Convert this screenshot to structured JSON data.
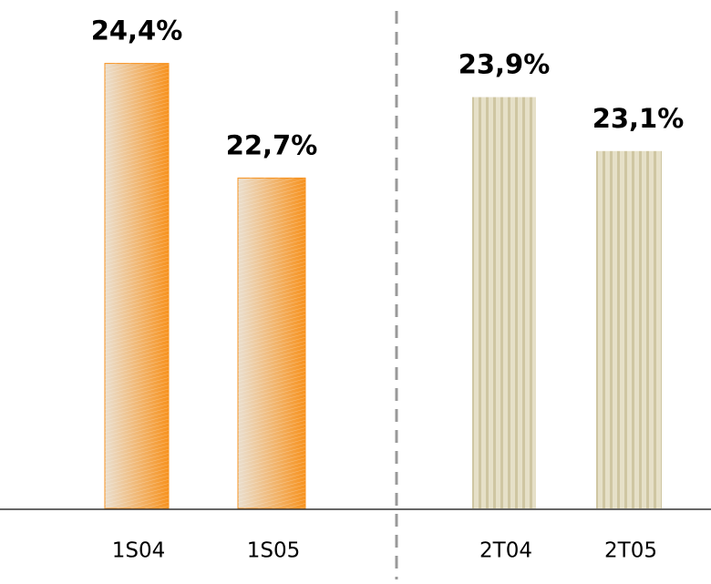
{
  "chart_data": {
    "type": "bar",
    "categories": [
      "1S04",
      "1S05",
      "2T04",
      "2T05"
    ],
    "values": [
      24.4,
      22.7,
      23.9,
      23.1
    ],
    "value_labels": [
      "24,4%",
      "22,7%",
      "23,9%",
      "23,1%"
    ],
    "colors": [
      "#f7921e",
      "#f7921e",
      "#d3cbaa",
      "#d3cbaa"
    ],
    "ylim": [
      17.8,
      24.8
    ]
  }
}
